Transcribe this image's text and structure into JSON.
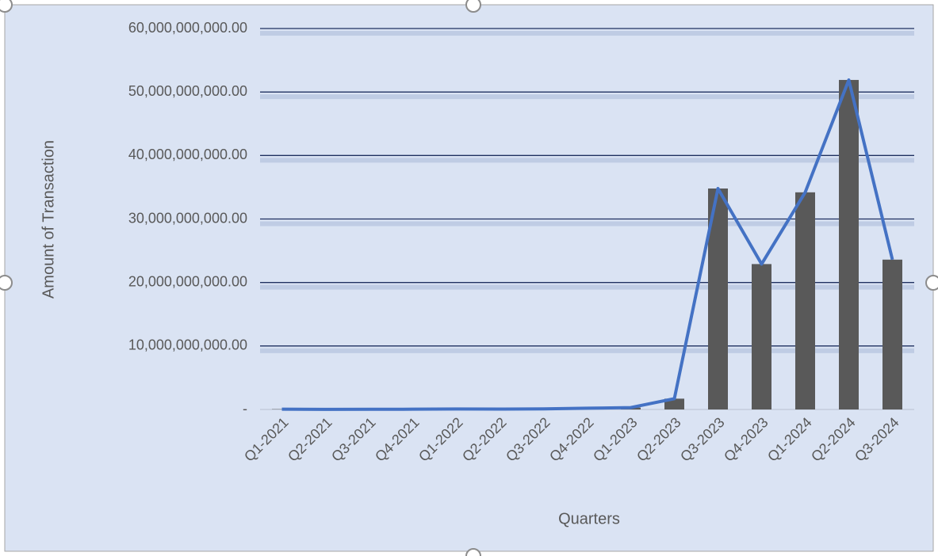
{
  "chart_data": {
    "type": "bar",
    "x_label": "Quarters",
    "y_label": "Amount of Transaction",
    "categories": [
      "Q1-2021",
      "Q2-2021",
      "Q3-2021",
      "Q4-2021",
      "Q1-2022",
      "Q2-2022",
      "Q3-2022",
      "Q4-2022",
      "Q1-2023",
      "Q2-2023",
      "Q3-2023",
      "Q4-2023",
      "Q1-2024",
      "Q2-2024",
      "Q3-2024"
    ],
    "series": [
      {
        "type": "bar",
        "color": "#595959",
        "values": [
          50000000,
          20000000,
          30000000,
          40000000,
          80000000,
          60000000,
          100000000,
          200000000,
          300000000,
          1700000000,
          34800000000,
          22900000000,
          34200000000,
          51900000000,
          23600000000
        ]
      },
      {
        "type": "line",
        "color": "#4472c4",
        "values": [
          50000000,
          20000000,
          30000000,
          40000000,
          80000000,
          60000000,
          100000000,
          200000000,
          300000000,
          1700000000,
          34800000000,
          22900000000,
          34200000000,
          51900000000,
          23600000000
        ]
      }
    ],
    "ylim": [
      0,
      60000000000
    ],
    "yticks": [
      {
        "value": 0,
        "label": "-"
      },
      {
        "value": 10000000000,
        "label": "10,000,000,000.00"
      },
      {
        "value": 20000000000,
        "label": "20,000,000,000.00"
      },
      {
        "value": 30000000000,
        "label": "30,000,000,000.00"
      },
      {
        "value": 40000000000,
        "label": "40,000,000,000.00"
      },
      {
        "value": 50000000000,
        "label": "50,000,000,000.00"
      },
      {
        "value": 60000000000,
        "label": "60,000,000,000.00"
      }
    ],
    "grid": true
  }
}
